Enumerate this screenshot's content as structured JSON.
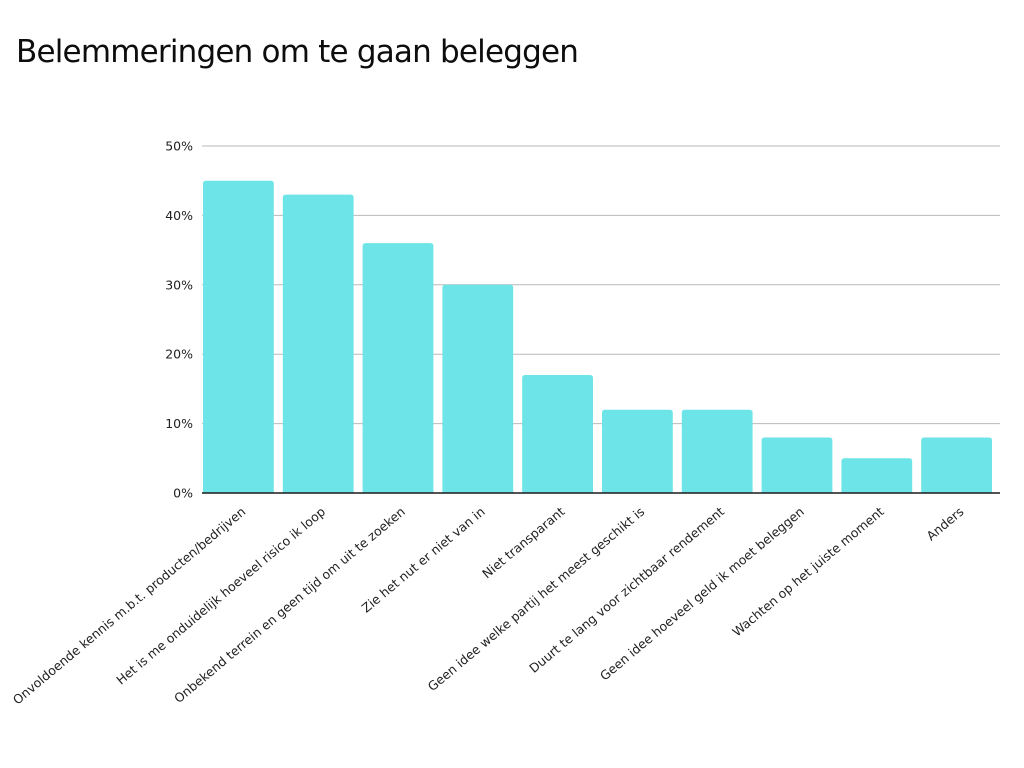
{
  "chart_data": {
    "type": "bar",
    "title": "Belemmeringen om te gaan beleggen",
    "xlabel": "",
    "ylabel": "",
    "ylim": [
      0,
      50
    ],
    "y_ticks": [
      "0%",
      "10%",
      "20%",
      "30%",
      "40%",
      "50%"
    ],
    "y_tick_values": [
      0,
      10,
      20,
      30,
      40,
      50
    ],
    "grid": true,
    "legend": "none",
    "bar_color": "#6ce4e8",
    "grid_color": "#b9b9b9",
    "categories": [
      "Onvoldoende kennis m.b.t. producten/bedrijven",
      "Het is me onduidelijk hoeveel risico ik loop",
      "Onbekend terrein en geen tijd om uit te zoeken",
      "Zie het nut er niet van in",
      "Niet transparant",
      "Geen idee welke partij het meest geschikt is",
      "Duurt te lang voor zichtbaar rendement",
      "Geen idee hoeveel geld ik moet beleggen",
      "Wachten op het juiste moment",
      "Anders"
    ],
    "values": [
      45,
      43,
      36,
      30,
      17,
      12,
      12,
      8,
      5,
      8
    ]
  }
}
